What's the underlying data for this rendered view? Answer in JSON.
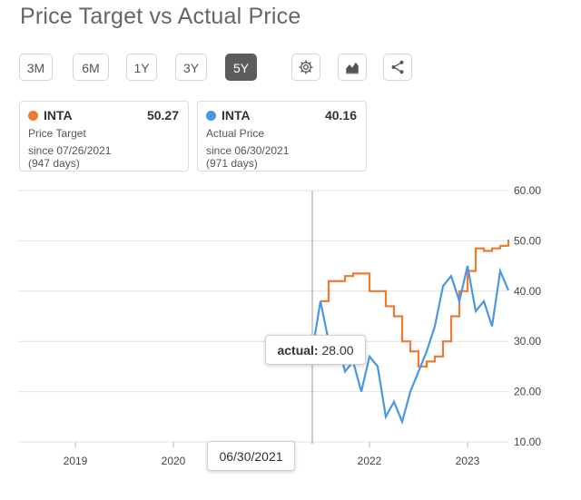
{
  "title": "Price Target vs Actual Price",
  "range_buttons": [
    {
      "label": "3M",
      "active": false
    },
    {
      "label": "6M",
      "active": false
    },
    {
      "label": "1Y",
      "active": false
    },
    {
      "label": "3Y",
      "active": false
    },
    {
      "label": "5Y",
      "active": true
    }
  ],
  "icons": [
    "gear-icon",
    "chart-type-icon",
    "share-icon"
  ],
  "cards": [
    {
      "ticker": "INTA",
      "value": "50.27",
      "kind": "Price Target",
      "since": "since 07/26/2021",
      "days": "(947 days)",
      "color": "#ee7b30"
    },
    {
      "ticker": "INTA",
      "value": "40.16",
      "kind": "Actual Price",
      "since": "since 06/30/2021",
      "days": "(971 days)",
      "color": "#4a97e4"
    }
  ],
  "tooltip": {
    "label": "actual:",
    "value": "28.00"
  },
  "crosshair_date": "06/30/2021",
  "colors": {
    "target": "#ee7b30",
    "actual": "#4a97e4",
    "grid": "#e3e3e3"
  },
  "chart_data": {
    "type": "line",
    "x_ticks": [
      "2019",
      "2020",
      "2022",
      "2023"
    ],
    "y_ticks": [
      "60.00",
      "50.00",
      "40.00",
      "30.00",
      "20.00",
      "10.00"
    ],
    "ylim": [
      10,
      60
    ],
    "xlim": [
      "2018-06",
      "2023-06"
    ],
    "series": [
      {
        "name": "Price Target",
        "points": [
          [
            "2021-07",
            38.0
          ],
          [
            "2021-08",
            42.0
          ],
          [
            "2021-10",
            43.0
          ],
          [
            "2021-11",
            43.5
          ],
          [
            "2022-01",
            40.0
          ],
          [
            "2022-03",
            37.0
          ],
          [
            "2022-04",
            35.0
          ],
          [
            "2022-05",
            30.0
          ],
          [
            "2022-06",
            28.0
          ],
          [
            "2022-07",
            25.0
          ],
          [
            "2022-08",
            26.0
          ],
          [
            "2022-09",
            27.0
          ],
          [
            "2022-10",
            30.0
          ],
          [
            "2022-11",
            35.0
          ],
          [
            "2022-12",
            40.0
          ],
          [
            "2023-01",
            44.0
          ],
          [
            "2023-02",
            48.5
          ],
          [
            "2023-03",
            48.0
          ],
          [
            "2023-04",
            48.5
          ],
          [
            "2023-05",
            49.0
          ],
          [
            "2023-06",
            50.27
          ]
        ]
      },
      {
        "name": "Actual Price",
        "points": [
          [
            "2021-06",
            28.0
          ],
          [
            "2021-07",
            38.0
          ],
          [
            "2021-08",
            30.0
          ],
          [
            "2021-09",
            31.0
          ],
          [
            "2021-10",
            24.0
          ],
          [
            "2021-11",
            26.0
          ],
          [
            "2021-12",
            20.0
          ],
          [
            "2022-01",
            27.0
          ],
          [
            "2022-02",
            25.0
          ],
          [
            "2022-03",
            15.0
          ],
          [
            "2022-04",
            18.0
          ],
          [
            "2022-05",
            14.0
          ],
          [
            "2022-06",
            20.0
          ],
          [
            "2022-07",
            24.0
          ],
          [
            "2022-08",
            28.0
          ],
          [
            "2022-09",
            33.0
          ],
          [
            "2022-10",
            41.0
          ],
          [
            "2022-11",
            43.0
          ],
          [
            "2022-12",
            38.0
          ],
          [
            "2023-01",
            45.0
          ],
          [
            "2023-02",
            36.0
          ],
          [
            "2023-03",
            38.0
          ],
          [
            "2023-04",
            33.0
          ],
          [
            "2023-05",
            44.0
          ],
          [
            "2023-06",
            40.16
          ]
        ]
      }
    ]
  }
}
